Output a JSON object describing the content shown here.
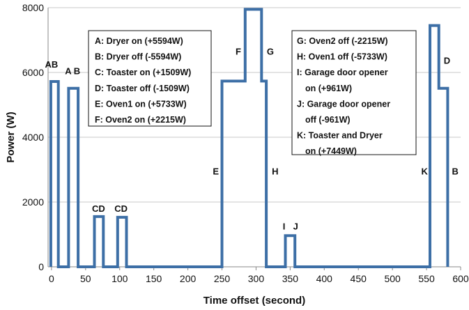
{
  "chart_data": {
    "type": "line",
    "title": "",
    "xlabel": "Time offset (second)",
    "ylabel": "Power (W)",
    "xlim": [
      -5,
      600
    ],
    "ylim": [
      0,
      8000
    ],
    "x_ticks": [
      0,
      50,
      100,
      150,
      200,
      250,
      300,
      350,
      400,
      450,
      500,
      550,
      600
    ],
    "y_ticks": [
      0,
      2000,
      4000,
      6000,
      8000
    ],
    "grid": "horizontal",
    "line_color": "#3d6fa6",
    "series": [
      {
        "x": [
          -1,
          -1,
          10,
          10,
          25,
          25,
          39,
          39,
          63,
          63,
          76,
          76,
          97,
          97,
          110,
          110,
          250,
          250,
          284,
          284,
          308,
          308,
          315,
          315,
          343,
          343,
          357,
          357,
          555,
          555,
          568,
          568,
          581,
          581
        ],
        "y": [
          0,
          5720,
          5720,
          0,
          0,
          5510,
          5510,
          0,
          0,
          1550,
          1550,
          0,
          0,
          1530,
          1530,
          0,
          0,
          5733,
          5733,
          7948,
          7948,
          5733,
          5733,
          0,
          0,
          961,
          961,
          0,
          0,
          7449,
          7449,
          5509,
          5509,
          0
        ]
      }
    ],
    "event_labels": [
      {
        "text": "AB",
        "x": 0,
        "y": 6150
      },
      {
        "text": "A B",
        "x": 31,
        "y": 5950
      },
      {
        "text": "CD",
        "x": 69,
        "y": 1700
      },
      {
        "text": "CD",
        "x": 102,
        "y": 1700
      },
      {
        "text": "E",
        "x": 241,
        "y": 2850
      },
      {
        "text": "F",
        "x": 274,
        "y": 6550
      },
      {
        "text": "G",
        "x": 321,
        "y": 6550
      },
      {
        "text": "H",
        "x": 328,
        "y": 2850
      },
      {
        "text": "I",
        "x": 341,
        "y": 1150
      },
      {
        "text": "J",
        "x": 358,
        "y": 1150
      },
      {
        "text": "K",
        "x": 547,
        "y": 2850
      },
      {
        "text": "D",
        "x": 580,
        "y": 6270
      },
      {
        "text": "B",
        "x": 592,
        "y": 2850
      }
    ],
    "legend": [
      {
        "position": "top-left",
        "entries": [
          "A: Dryer on (+5594W)",
          "B: Dryer off (-5594W)",
          "C: Toaster on (+1509W)",
          "D: Toaster off (-1509W)",
          "E: Oven1 on (+5733W)",
          "F: Oven2 on (+2215W)"
        ]
      },
      {
        "position": "top-right",
        "entries": [
          "G: Oven2 off (-2215W)",
          "H: Oven1 off (-5733W)",
          "I: Garage door opener",
          "on (+961W)",
          "J: Garage door opener",
          "off (-961W)",
          "K: Toaster and Dryer",
          "on (+7449W)"
        ]
      }
    ]
  }
}
